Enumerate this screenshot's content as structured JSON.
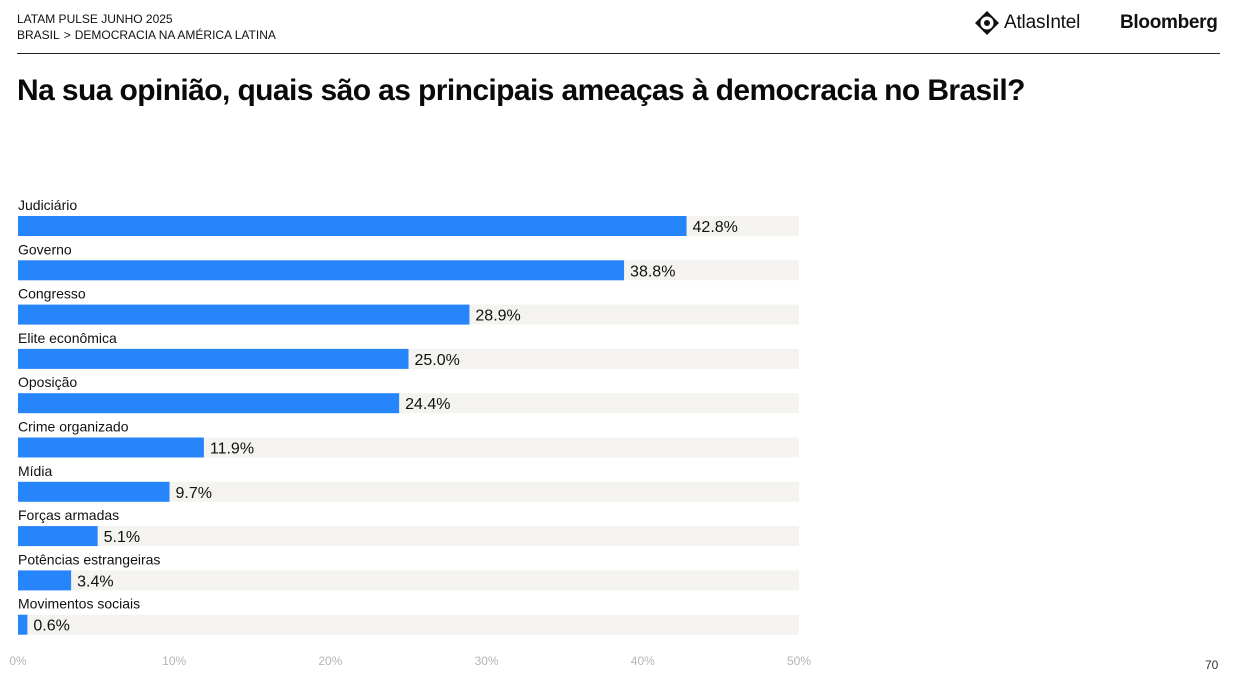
{
  "header": {
    "report": "LATAM PULSE JUNHO 2025",
    "breadcrumb": [
      "BRASIL",
      "DEMOCRACIA NA AMÉRICA LATINA"
    ],
    "breadcrumb_separator": ">",
    "brand_primary": "AtlasIntel",
    "brand_secondary": "Bloomberg"
  },
  "page_title": "Na sua opinião, quais são as principais ameaças à democracia no Brasil?",
  "page_number": "70",
  "colors": {
    "bar": "#2785fb",
    "track": "#f4f3ef",
    "tick": "#b5b5b5"
  },
  "chart_data": {
    "type": "bar",
    "orientation": "horizontal",
    "title": "Na sua opinião, quais são as principais ameaças à democracia no Brasil?",
    "categories": [
      "Judiciário",
      "Governo",
      "Congresso",
      "Elite econômica",
      "Oposição",
      "Crime organizado",
      "Mídia",
      "Forças armadas",
      "Potências estrangeiras",
      "Movimentos sociais"
    ],
    "values": [
      42.8,
      38.8,
      28.9,
      25.0,
      24.4,
      11.9,
      9.7,
      5.1,
      3.4,
      0.6
    ],
    "value_labels": [
      "42.8%",
      "38.8%",
      "28.9%",
      "25.0%",
      "24.4%",
      "11.9%",
      "9.7%",
      "5.1%",
      "3.4%",
      "0.6%"
    ],
    "xlim": [
      0,
      50
    ],
    "xticks": [
      0,
      10,
      20,
      30,
      40,
      50
    ],
    "xtick_labels": [
      "0%",
      "10%",
      "20%",
      "30%",
      "40%",
      "50%"
    ],
    "grid": false,
    "legend": "none"
  }
}
